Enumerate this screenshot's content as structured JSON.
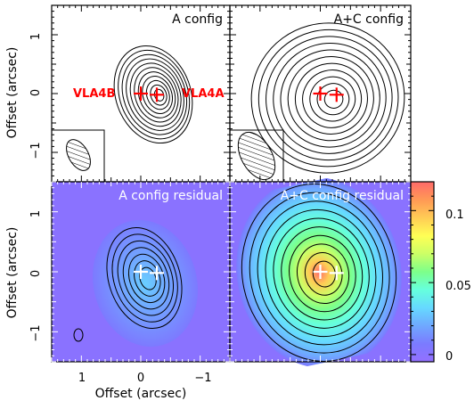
{
  "chart_data": [
    {
      "type": "contour",
      "panel_title": "A config",
      "xlabel": "",
      "ylabel": "Offset (arcsec)",
      "xlim": [
        1.5,
        -1.5
      ],
      "ylim": [
        -1.5,
        1.5
      ],
      "y_ticks": [
        1,
        0,
        -1
      ],
      "y_tick_labels": [
        "1",
        "0",
        "−1"
      ],
      "source_labels": [
        "VLA4B",
        "VLA4A"
      ],
      "source_positions": [
        [
          0.0,
          0.0
        ],
        [
          -0.27,
          -0.02
        ]
      ],
      "beam_ellipse": {
        "center": [
          1.02,
          -1.05
        ],
        "major_axis": 0.6,
        "minor_axis": 0.35,
        "orientation": "tilted"
      },
      "contour_centers": [
        [
          -0.02,
          -0.03
        ]
      ],
      "contour_count": 11,
      "background": "white",
      "contour_color": "#000000",
      "marker_color": "#ff0000"
    },
    {
      "type": "contour",
      "panel_title": "A+C config",
      "xlim": [
        1.5,
        -1.5
      ],
      "ylim": [
        -1.5,
        1.5
      ],
      "source_positions": [
        [
          0.0,
          0.0
        ],
        [
          -0.27,
          -0.02
        ]
      ],
      "beam_ellipse": {
        "center": [
          1.05,
          -1.05
        ],
        "major_axis": 0.9,
        "minor_axis": 0.55,
        "orientation": "tilted"
      },
      "contour_count": 11,
      "background": "white",
      "contour_color": "#000000",
      "marker_color": "#ff0000"
    },
    {
      "type": "heatmap",
      "panel_title": "A config residual",
      "xlabel": "Offset (arcsec)",
      "ylabel": "Offset (arcsec)",
      "xlim": [
        1.5,
        -1.5
      ],
      "ylim": [
        -1.5,
        1.5
      ],
      "x_ticks": [
        1,
        0,
        -1
      ],
      "x_tick_labels": [
        "1",
        "0",
        "−1"
      ],
      "y_ticks": [
        1,
        0,
        -1
      ],
      "y_tick_labels": [
        "1",
        "0",
        "−1"
      ],
      "source_positions": [
        [
          0.0,
          0.0
        ],
        [
          -0.27,
          -0.02
        ]
      ],
      "contour_count": 7,
      "marker_color": "#ffffff",
      "contour_color": "#000000"
    },
    {
      "type": "heatmap",
      "panel_title": "A+C config residual",
      "xlim": [
        1.5,
        -1.5
      ],
      "ylim": [
        -1.5,
        1.5
      ],
      "source_positions": [
        [
          0.0,
          0.0
        ],
        [
          -0.27,
          -0.02
        ]
      ],
      "contour_count": 10,
      "marker_color": "#ffffff",
      "contour_color": "#000000",
      "colorbar": {
        "range": [
          -0.005,
          0.12
        ],
        "ticks": [
          0,
          0.05,
          0.1
        ],
        "tick_labels": [
          "0",
          "0.05",
          "0.1"
        ],
        "colors": [
          "#9370ff",
          "#7b7bff",
          "#6fa8ff",
          "#66d9ff",
          "#66ffdd",
          "#7dff8a",
          "#ccff66",
          "#ffff55",
          "#ffcc55",
          "#ff9955",
          "#ff6a6a"
        ]
      }
    }
  ]
}
